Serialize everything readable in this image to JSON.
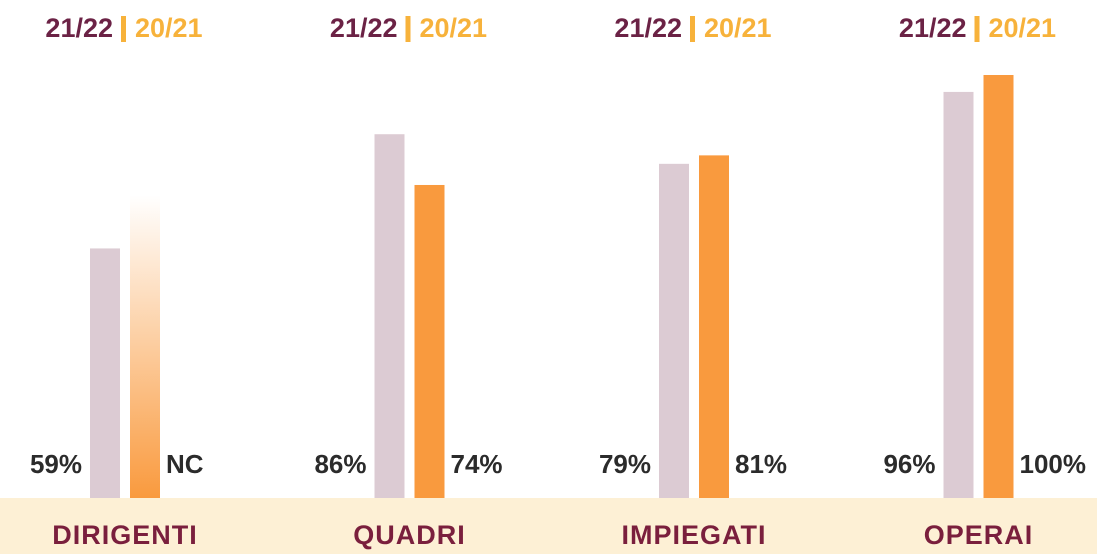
{
  "chart_data": {
    "type": "bar",
    "categories": [
      "DIRIGENTI",
      "QUADRI",
      "IMPIEGATI",
      "OPERAI"
    ],
    "series": [
      {
        "name": "21/22",
        "color": "#dccbd3",
        "text_color": "#6b2245",
        "values": [
          59,
          86,
          79,
          96
        ],
        "value_labels": [
          "59%",
          "86%",
          "79%",
          "96%"
        ]
      },
      {
        "name": "20/21",
        "color": "#f99a3e",
        "text_color": "#f7b23b",
        "values": [
          null,
          74,
          81,
          100
        ],
        "value_labels": [
          "NC",
          "74%",
          "81%",
          "100%"
        ]
      }
    ],
    "ylim": [
      0,
      100
    ]
  }
}
